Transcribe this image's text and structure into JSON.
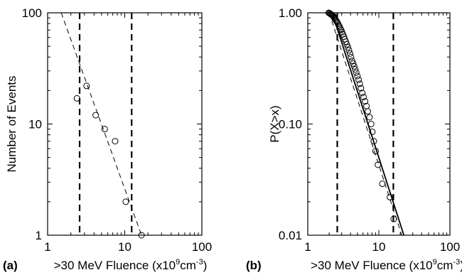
{
  "chart_data": [
    {
      "type": "scatter",
      "panel_label": "(a)",
      "xlabel_prefix": ">30 MeV Fluence (x10",
      "xlabel_exp1": "9",
      "xlabel_mid": "cm",
      "xlabel_exp2": "-3",
      "xlabel_suffix": ")",
      "ylabel": "Number of Events",
      "xscale": "log",
      "yscale": "log",
      "xlim": [
        1,
        100
      ],
      "ylim": [
        1,
        100
      ],
      "xticks": [
        {
          "v": 1,
          "label": "1"
        },
        {
          "v": 10,
          "label": "10"
        },
        {
          "v": 100,
          "label": "100"
        }
      ],
      "yticks": [
        {
          "v": 1,
          "label": "1"
        },
        {
          "v": 10,
          "label": "10"
        },
        {
          "v": 100,
          "label": "100"
        }
      ],
      "points": [
        {
          "x": 2.4,
          "y": 17
        },
        {
          "x": 3.2,
          "y": 22
        },
        {
          "x": 4.2,
          "y": 12
        },
        {
          "x": 5.5,
          "y": 9
        },
        {
          "x": 7.5,
          "y": 7
        },
        {
          "x": 10.3,
          "y": 2
        },
        {
          "x": 16.5,
          "y": 1
        }
      ],
      "fit_line": {
        "style": "dashed",
        "from": {
          "x": 1.5,
          "y": 100
        },
        "to": {
          "x": 16.5,
          "y": 1
        }
      },
      "vlines": [
        2.6,
        12.3
      ],
      "grid": false,
      "legend": "none"
    },
    {
      "type": "scatter",
      "panel_label": "(b)",
      "xlabel_prefix": ">30 MeV Fluence (x10",
      "xlabel_exp1": "9",
      "xlabel_mid": "cm",
      "xlabel_exp2": "-3",
      "xlabel_suffix": ")",
      "ylabel": "P(X>x)",
      "xscale": "log",
      "yscale": "log",
      "xlim": [
        1,
        100
      ],
      "ylim": [
        0.01,
        1
      ],
      "xticks": [
        {
          "v": 1,
          "label": "1"
        },
        {
          "v": 10,
          "label": "10"
        },
        {
          "v": 100,
          "label": "100"
        }
      ],
      "yticks": [
        {
          "v": 0.01,
          "label": "0.01"
        },
        {
          "v": 0.1,
          "label": "0.10"
        },
        {
          "v": 1,
          "label": "1.00"
        }
      ],
      "points": [
        {
          "x": 1.97,
          "y": 1.0
        },
        {
          "x": 2.02,
          "y": 0.99
        },
        {
          "x": 2.07,
          "y": 0.98
        },
        {
          "x": 2.12,
          "y": 0.97
        },
        {
          "x": 2.17,
          "y": 0.96
        },
        {
          "x": 2.22,
          "y": 0.95
        },
        {
          "x": 2.27,
          "y": 0.94
        },
        {
          "x": 2.32,
          "y": 0.92
        },
        {
          "x": 2.36,
          "y": 0.9
        },
        {
          "x": 2.42,
          "y": 0.88
        },
        {
          "x": 2.48,
          "y": 0.86
        },
        {
          "x": 2.54,
          "y": 0.84
        },
        {
          "x": 2.6,
          "y": 0.82
        },
        {
          "x": 2.66,
          "y": 0.8
        },
        {
          "x": 2.73,
          "y": 0.77
        },
        {
          "x": 2.8,
          "y": 0.75
        },
        {
          "x": 2.88,
          "y": 0.72
        },
        {
          "x": 2.95,
          "y": 0.7
        },
        {
          "x": 3.03,
          "y": 0.67
        },
        {
          "x": 3.12,
          "y": 0.64
        },
        {
          "x": 3.22,
          "y": 0.61
        },
        {
          "x": 3.32,
          "y": 0.58
        },
        {
          "x": 3.43,
          "y": 0.55
        },
        {
          "x": 3.55,
          "y": 0.52
        },
        {
          "x": 3.68,
          "y": 0.49
        },
        {
          "x": 3.8,
          "y": 0.46
        },
        {
          "x": 3.93,
          "y": 0.43
        },
        {
          "x": 4.05,
          "y": 0.4
        },
        {
          "x": 4.2,
          "y": 0.37
        },
        {
          "x": 4.35,
          "y": 0.35
        },
        {
          "x": 4.5,
          "y": 0.33
        },
        {
          "x": 4.65,
          "y": 0.31
        },
        {
          "x": 4.8,
          "y": 0.29
        },
        {
          "x": 5.0,
          "y": 0.27
        },
        {
          "x": 5.2,
          "y": 0.25
        },
        {
          "x": 5.4,
          "y": 0.23
        },
        {
          "x": 5.6,
          "y": 0.21
        },
        {
          "x": 5.85,
          "y": 0.19
        },
        {
          "x": 6.1,
          "y": 0.175
        },
        {
          "x": 6.4,
          "y": 0.16
        },
        {
          "x": 6.7,
          "y": 0.145
        },
        {
          "x": 7.0,
          "y": 0.13
        },
        {
          "x": 7.4,
          "y": 0.115
        },
        {
          "x": 7.8,
          "y": 0.1
        },
        {
          "x": 8.1,
          "y": 0.085
        },
        {
          "x": 8.5,
          "y": 0.07
        },
        {
          "x": 9.0,
          "y": 0.057
        },
        {
          "x": 9.7,
          "y": 0.043
        },
        {
          "x": 11.2,
          "y": 0.029
        },
        {
          "x": 14.3,
          "y": 0.022
        },
        {
          "x": 16.2,
          "y": 0.014
        }
      ],
      "fit_line": {
        "style": "solid",
        "from": {
          "x": 2.2,
          "y": 1.0
        },
        "to": {
          "x": 22.5,
          "y": 0.01
        }
      },
      "fit_line_2": {
        "style": "dashed",
        "from": {
          "x": 2.0,
          "y": 1.0
        },
        "to": {
          "x": 21.0,
          "y": 0.01
        }
      },
      "vlines": [
        2.6,
        16.0
      ],
      "grid": false,
      "legend": "none"
    }
  ]
}
